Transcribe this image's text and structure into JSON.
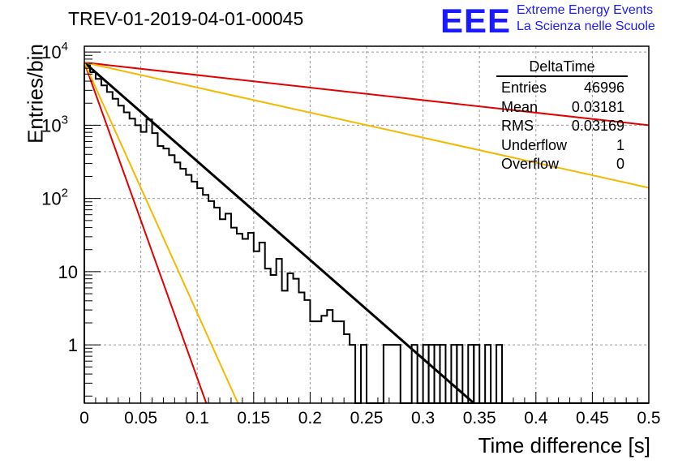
{
  "header": {
    "run_title": "TREV-01-2019-04-01-00045",
    "logo": "EEE",
    "logo_line1": "Extreme Energy Events",
    "logo_line2": "La Scienza nelle Scuole"
  },
  "stats_box": {
    "title": "DeltaTime",
    "rows": [
      {
        "label": "Entries",
        "value": "46996"
      },
      {
        "label": "Mean",
        "value": "0.03181"
      },
      {
        "label": "RMS",
        "value": "0.03169"
      },
      {
        "label": "Underflow",
        "value": "1"
      },
      {
        "label": "Overflow",
        "value": "0"
      }
    ]
  },
  "chart_data": {
    "type": "line",
    "title": "TREV-01-2019-04-01-00045",
    "xlabel": "Time difference [s]",
    "ylabel": "Entries/bin",
    "xlim": [
      0,
      0.5
    ],
    "ylim": [
      0.16,
      12000
    ],
    "y_scale": "log",
    "grid": true,
    "x_ticks": [
      "0",
      "0.05",
      "0.1",
      "0.15",
      "0.2",
      "0.25",
      "0.3",
      "0.35",
      "0.4",
      "0.45",
      "0.5"
    ],
    "y_ticks": [
      {
        "value": 1,
        "label": "1"
      },
      {
        "value": 10,
        "label": "10"
      },
      {
        "value": 100,
        "label": "10^2"
      },
      {
        "value": 1000,
        "label": "10^3"
      },
      {
        "value": 10000,
        "label": "10^4"
      }
    ],
    "histogram": {
      "name": "DeltaTime",
      "bin_width": 0.005,
      "color": "#000000",
      "counts": [
        6600,
        5300,
        4300,
        3500,
        2850,
        2300,
        1850,
        1500,
        1230,
        1000,
        810,
        1200,
        780,
        520,
        480,
        390,
        310,
        255,
        210,
        170,
        138,
        112,
        92,
        75,
        52,
        62,
        40,
        33,
        28,
        34,
        19,
        25,
        11,
        9,
        15,
        5.5,
        9.5,
        8,
        5.2,
        4.1,
        2.1,
        2.1,
        2.5,
        3,
        2.1,
        2.1,
        1.4,
        1,
        0.16,
        1,
        0.16,
        0.16,
        0.16,
        1,
        1,
        1,
        0.16,
        0.16,
        1,
        0.16,
        0.16,
        0.16,
        0.16,
        0.16,
        0.16,
        0.16,
        0.16,
        0.16,
        0.16,
        0.16,
        0.16,
        0.16,
        0.16,
        0.16,
        0.16,
        0.16,
        0.16,
        0.16,
        0.16,
        0.16,
        0.16,
        0.16,
        0.16,
        0.16,
        0.16,
        0.16,
        0.16,
        0.16,
        0.16,
        0.16,
        0.16,
        0.16,
        0.16,
        0.16,
        0.16,
        0.16,
        0.16,
        0.16,
        0.16,
        0.16
      ],
      "single_bins": [
        0.3,
        0.305,
        0.31,
        0.315,
        0.325,
        0.33,
        0.34,
        0.345,
        0.355,
        0.365
      ]
    },
    "series": [
      {
        "color": "#000000",
        "x": [
          0,
          0.345
        ],
        "y": [
          7200,
          0.16
        ]
      },
      {
        "color": "#e00000",
        "x": [
          0,
          0.5
        ],
        "y": [
          7200,
          1000
        ]
      },
      {
        "color": "#f5b800",
        "x": [
          0,
          0.5
        ],
        "y": [
          7200,
          140
        ]
      },
      {
        "color": "#e00000",
        "x": [
          0,
          0.108
        ],
        "y": [
          7200,
          0.16
        ]
      },
      {
        "color": "#f5b800",
        "x": [
          0,
          0.136
        ],
        "y": [
          7200,
          0.16
        ]
      }
    ]
  }
}
